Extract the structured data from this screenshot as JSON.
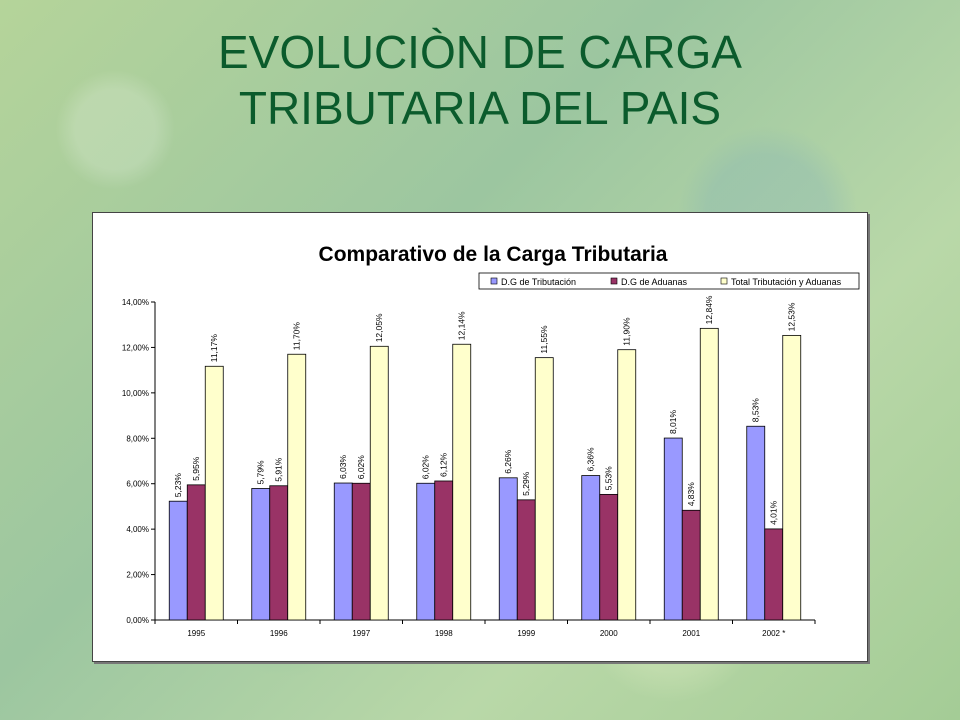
{
  "slide": {
    "title_line1": "EVOLUCIÒN DE CARGA",
    "title_line2": "TRIBUTARIA DEL PAIS"
  },
  "chart_data": {
    "type": "bar",
    "title": "Comparativo de la Carga Tributaria",
    "xlabel": "",
    "ylabel": "",
    "ylim": [
      0,
      14
    ],
    "y_ticks": [
      "0,00%",
      "2,00%",
      "4,00%",
      "6,00%",
      "8,00%",
      "10,00%",
      "12,00%",
      "14,00%"
    ],
    "y_tick_values": [
      0,
      2,
      4,
      6,
      8,
      10,
      12,
      14
    ],
    "grid": false,
    "legend_position": "top-right",
    "categories": [
      "1995",
      "1996",
      "1997",
      "1998",
      "1999",
      "2000",
      "2001",
      "2002 *"
    ],
    "series": [
      {
        "name": "D.G de Tributación",
        "color": "#9999ff",
        "values": [
          5.23,
          5.79,
          6.03,
          6.02,
          6.26,
          6.36,
          8.01,
          8.53
        ],
        "labels": [
          "5,23%",
          "5,79%",
          "6,03%",
          "6,02%",
          "6,26%",
          "6,36%",
          "8,01%",
          "8,53%"
        ]
      },
      {
        "name": "D.G de Aduanas",
        "color": "#993366",
        "values": [
          5.95,
          5.91,
          6.02,
          6.12,
          5.29,
          5.53,
          4.83,
          4.01
        ],
        "labels": [
          "5,95%",
          "5,91%",
          "6,02%",
          "6,12%",
          "5,29%",
          "5,53%",
          "4,83%",
          "4,01%"
        ]
      },
      {
        "name": "Total Tributación y Aduanas",
        "color": "#ffffcc",
        "values": [
          11.17,
          11.7,
          12.05,
          12.14,
          11.55,
          11.9,
          12.84,
          12.53
        ],
        "labels": [
          "11,17%",
          "11,70%",
          "12,05%",
          "12,14%",
          "11,55%",
          "11,90%",
          "12,84%",
          "12,53%"
        ]
      }
    ]
  }
}
